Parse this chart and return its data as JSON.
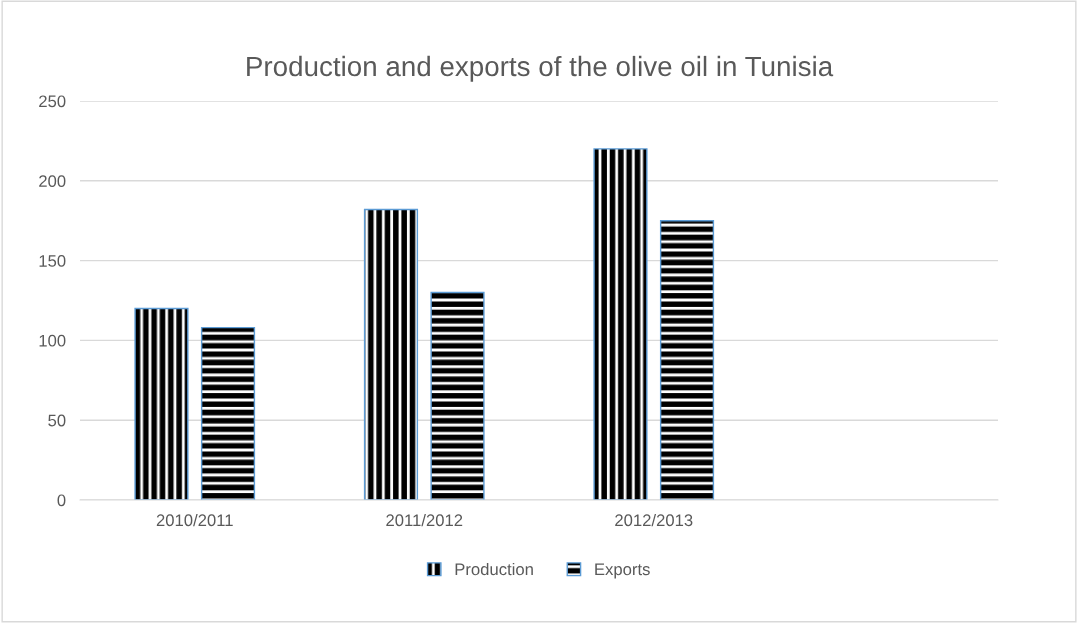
{
  "chart_data": {
    "type": "bar",
    "title": "Production and exports of the olive oil in Tunisia",
    "categories": [
      "2010/2011",
      "2011/2012",
      "2012/2013",
      null
    ],
    "series": [
      {
        "name": "Production",
        "color": "#5b9bd5",
        "values": [
          120,
          182,
          220,
          null
        ]
      },
      {
        "name": "Exports",
        "color": "#5b9bd5",
        "values": [
          108,
          130,
          175,
          null
        ]
      }
    ],
    "ylim": [
      0,
      250
    ],
    "yticks": [
      0,
      50,
      100,
      150,
      200,
      250
    ],
    "grid": "y",
    "legend": "bottom"
  }
}
